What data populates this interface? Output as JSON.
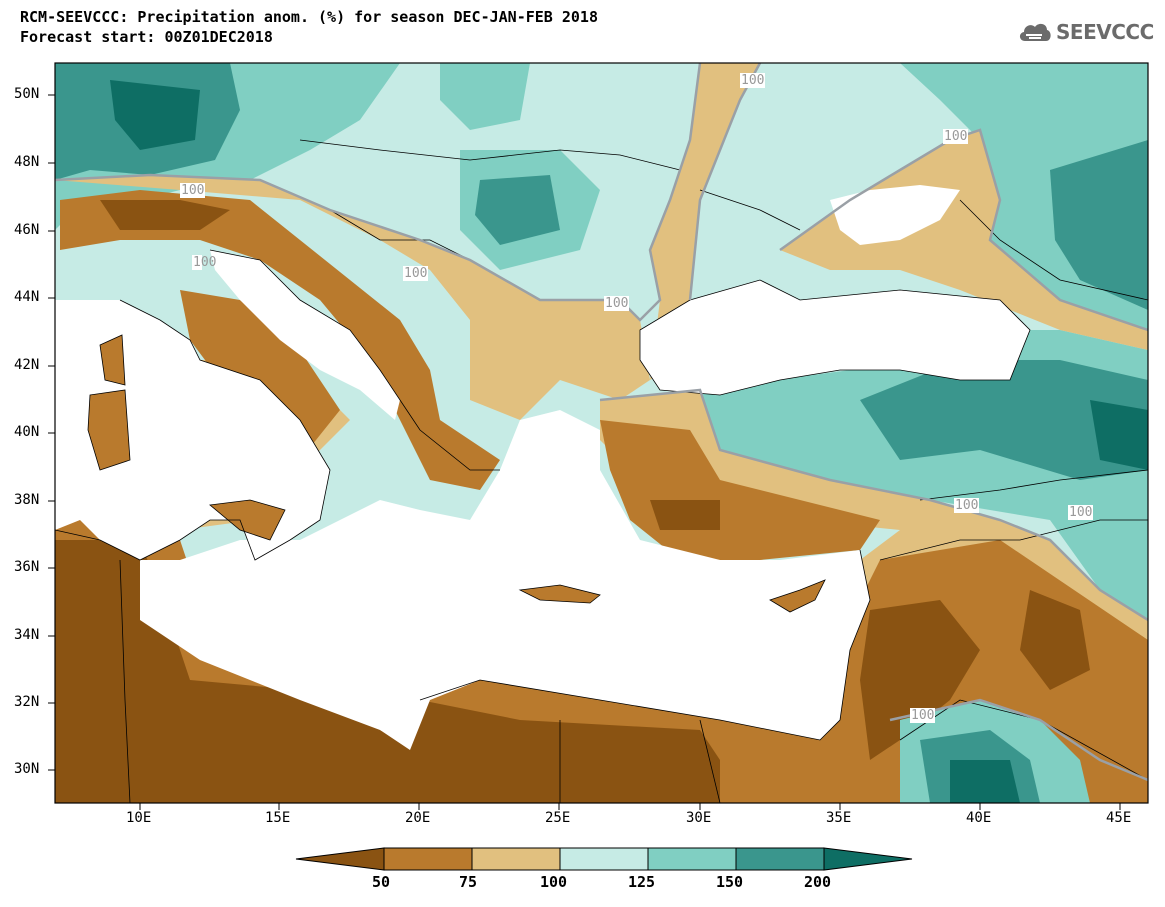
{
  "title_line1": "RCM-SEEVCCC: Precipitation anom. (%) for season DEC-JAN-FEB 2018",
  "title_line2": "Forecast start: 00Z01DEC2018",
  "logo_text": "SEEVCCC",
  "lat_labels": [
    "50N",
    "48N",
    "46N",
    "44N",
    "42N",
    "40N",
    "38N",
    "36N",
    "34N",
    "32N",
    "30N"
  ],
  "lon_labels": [
    "10E",
    "15E",
    "20E",
    "25E",
    "30E",
    "35E",
    "40E",
    "45E"
  ],
  "colorbar": {
    "labels": [
      "50",
      "75",
      "100",
      "125",
      "150",
      "200"
    ],
    "colors": [
      "#8a5312",
      "#b97a2d",
      "#e1c07f",
      "#c6ebe5",
      "#80cfc2",
      "#3a968d",
      "#0e6e64"
    ]
  },
  "contour_labels": [
    "100",
    "100",
    "100",
    "100",
    "100",
    "100",
    "100",
    "100",
    "100"
  ]
}
